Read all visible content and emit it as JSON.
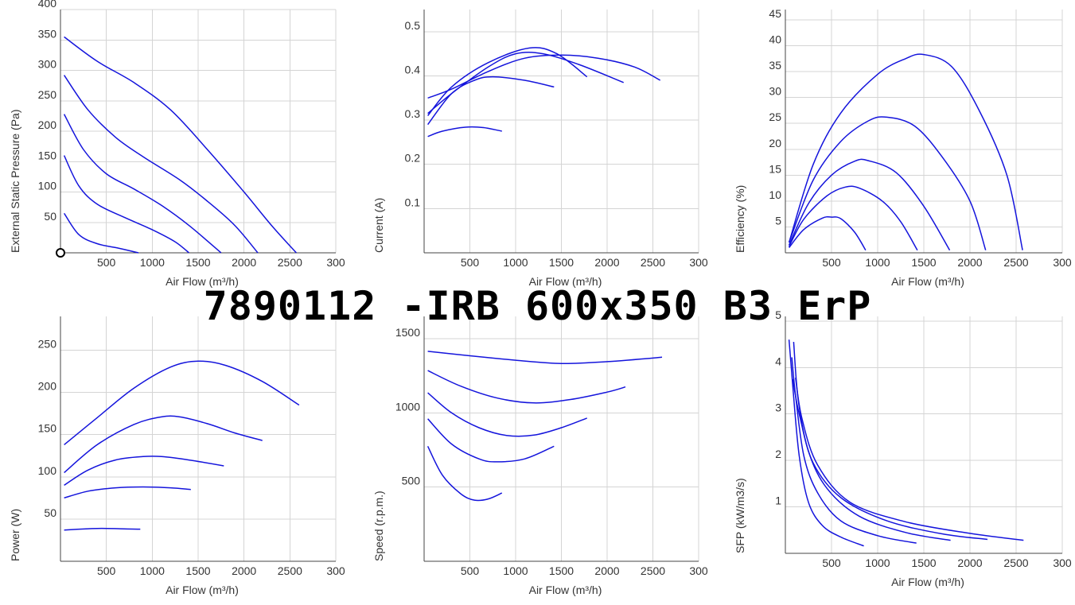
{
  "page": {
    "title": "7890112 -IRB 600x350 B3 ErP"
  },
  "colors": {
    "curve": "#1414dc"
  },
  "chart_data": [
    {
      "type": "line",
      "xlabel": "Air Flow (m³/h)",
      "ylabel": "External Static Pressure (Pa)",
      "xlim": [
        0,
        3000
      ],
      "ylim": [
        0,
        400
      ],
      "x_ticks": [
        "500",
        "1000",
        "1500",
        "2000",
        "2500",
        "300"
      ],
      "y_ticks": [
        "50",
        "100",
        "150",
        "200",
        "250",
        "300",
        "350",
        "400"
      ],
      "marker": {
        "x": 0,
        "y": 0,
        "shape": "circle"
      },
      "series": [
        {
          "points": [
            [
              40,
              355
            ],
            [
              400,
              315
            ],
            [
              800,
              280
            ],
            [
              1200,
              235
            ],
            [
              1600,
              170
            ],
            [
              2000,
              100
            ],
            [
              2300,
              45
            ],
            [
              2570,
              0
            ]
          ]
        },
        {
          "points": [
            [
              40,
              292
            ],
            [
              300,
              235
            ],
            [
              600,
              190
            ],
            [
              900,
              158
            ],
            [
              1300,
              120
            ],
            [
              1600,
              85
            ],
            [
              1900,
              45
            ],
            [
              2150,
              0
            ]
          ]
        },
        {
          "points": [
            [
              40,
              228
            ],
            [
              250,
              170
            ],
            [
              500,
              130
            ],
            [
              800,
              105
            ],
            [
              1100,
              78
            ],
            [
              1400,
              45
            ],
            [
              1750,
              0
            ]
          ]
        },
        {
          "points": [
            [
              40,
              160
            ],
            [
              200,
              110
            ],
            [
              400,
              80
            ],
            [
              700,
              58
            ],
            [
              1000,
              38
            ],
            [
              1250,
              18
            ],
            [
              1400,
              0
            ]
          ]
        },
        {
          "points": [
            [
              40,
              65
            ],
            [
              200,
              30
            ],
            [
              400,
              15
            ],
            [
              650,
              7
            ],
            [
              850,
              0
            ]
          ]
        }
      ]
    },
    {
      "type": "line",
      "xlabel": "Air Flow (m³/h)",
      "ylabel": "Current (A)",
      "xlim": [
        0,
        3000
      ],
      "ylim": [
        0,
        0.55
      ],
      "x_ticks": [
        "500",
        "1000",
        "1500",
        "2000",
        "2500",
        "300"
      ],
      "y_ticks": [
        "0.1",
        "0.2",
        "0.3",
        "0.4",
        "0.5"
      ],
      "series": [
        {
          "points": [
            [
              40,
              0.35
            ],
            [
              300,
              0.37
            ],
            [
              700,
              0.41
            ],
            [
              1100,
              0.44
            ],
            [
              1500,
              0.447
            ],
            [
              1900,
              0.44
            ],
            [
              2300,
              0.42
            ],
            [
              2580,
              0.39
            ]
          ]
        },
        {
          "points": [
            [
              40,
              0.315
            ],
            [
              300,
              0.36
            ],
            [
              700,
              0.42
            ],
            [
              1000,
              0.45
            ],
            [
              1300,
              0.45
            ],
            [
              1700,
              0.425
            ],
            [
              2180,
              0.385
            ]
          ]
        },
        {
          "points": [
            [
              40,
              0.31
            ],
            [
              300,
              0.375
            ],
            [
              700,
              0.43
            ],
            [
              1150,
              0.463
            ],
            [
              1450,
              0.45
            ],
            [
              1780,
              0.398
            ]
          ]
        },
        {
          "points": [
            [
              40,
              0.29
            ],
            [
              300,
              0.36
            ],
            [
              550,
              0.39
            ],
            [
              750,
              0.398
            ],
            [
              1100,
              0.39
            ],
            [
              1420,
              0.375
            ]
          ]
        },
        {
          "points": [
            [
              40,
              0.263
            ],
            [
              200,
              0.275
            ],
            [
              450,
              0.284
            ],
            [
              650,
              0.283
            ],
            [
              850,
              0.275
            ]
          ]
        }
      ]
    },
    {
      "type": "line",
      "xlabel": "Air Flow (m³/h)",
      "ylabel": "Efficiency (%)",
      "xlim": [
        0,
        3000
      ],
      "ylim": [
        0,
        47
      ],
      "x_ticks": [
        "500",
        "1000",
        "1500",
        "2000",
        "2500",
        "300"
      ],
      "y_ticks": [
        "5",
        "10",
        "15",
        "20",
        "25",
        "30",
        "35",
        "40",
        "45"
      ],
      "series": [
        {
          "points": [
            [
              40,
              2
            ],
            [
              300,
              17
            ],
            [
              600,
              27
            ],
            [
              1000,
              34.5
            ],
            [
              1300,
              37.5
            ],
            [
              1500,
              38.3
            ],
            [
              1800,
              36
            ],
            [
              2100,
              27.5
            ],
            [
              2400,
              15
            ],
            [
              2570,
              0.5
            ]
          ]
        },
        {
          "points": [
            [
              40,
              2
            ],
            [
              300,
              14
            ],
            [
              600,
              21.5
            ],
            [
              900,
              25.5
            ],
            [
              1100,
              26.2
            ],
            [
              1400,
              24.5
            ],
            [
              1700,
              18.5
            ],
            [
              2000,
              10
            ],
            [
              2170,
              0.5
            ]
          ]
        },
        {
          "points": [
            [
              40,
              1.5
            ],
            [
              250,
              9.5
            ],
            [
              500,
              15
            ],
            [
              750,
              17.7
            ],
            [
              900,
              17.8
            ],
            [
              1200,
              15.5
            ],
            [
              1500,
              9
            ],
            [
              1780,
              0.5
            ]
          ]
        },
        {
          "points": [
            [
              40,
              1.2
            ],
            [
              200,
              6.5
            ],
            [
              450,
              11
            ],
            [
              650,
              12.7
            ],
            [
              800,
              12.5
            ],
            [
              1050,
              10
            ],
            [
              1250,
              6
            ],
            [
              1430,
              0.5
            ]
          ]
        },
        {
          "points": [
            [
              40,
              1
            ],
            [
              200,
              4.5
            ],
            [
              400,
              6.7
            ],
            [
              500,
              6.9
            ],
            [
              600,
              6.6
            ],
            [
              750,
              4
            ],
            [
              870,
              0.5
            ]
          ]
        }
      ]
    },
    {
      "type": "line",
      "xlabel": "Air Flow (m³/h)",
      "ylabel": "Power (W)",
      "xlim": [
        0,
        3000
      ],
      "ylim": [
        0,
        290
      ],
      "x_ticks": [
        "500",
        "1000",
        "1500",
        "2000",
        "2500",
        "300"
      ],
      "y_ticks": [
        "50",
        "100",
        "150",
        "200",
        "250"
      ],
      "series": [
        {
          "points": [
            [
              40,
              138
            ],
            [
              400,
              170
            ],
            [
              800,
              205
            ],
            [
              1200,
              230
            ],
            [
              1500,
              237
            ],
            [
              1800,
              232
            ],
            [
              2200,
              213
            ],
            [
              2600,
              185
            ]
          ]
        },
        {
          "points": [
            [
              40,
              105
            ],
            [
              400,
              138
            ],
            [
              800,
              162
            ],
            [
              1100,
              171
            ],
            [
              1300,
              171
            ],
            [
              1600,
              163
            ],
            [
              1900,
              152
            ],
            [
              2200,
              143
            ]
          ]
        },
        {
          "points": [
            [
              40,
              90
            ],
            [
              300,
              108
            ],
            [
              600,
              120
            ],
            [
              900,
              124
            ],
            [
              1100,
              124
            ],
            [
              1400,
              120
            ],
            [
              1780,
              113
            ]
          ]
        },
        {
          "points": [
            [
              40,
              75
            ],
            [
              300,
              83
            ],
            [
              600,
              87
            ],
            [
              900,
              88
            ],
            [
              1200,
              87
            ],
            [
              1420,
              85
            ]
          ]
        },
        {
          "points": [
            [
              40,
              37
            ],
            [
              300,
              38.5
            ],
            [
              450,
              39
            ],
            [
              650,
              38.5
            ],
            [
              870,
              38
            ]
          ]
        }
      ]
    },
    {
      "type": "line",
      "xlabel": "Air Flow (m³/h)",
      "ylabel": "Speed (r.p.m.)",
      "xlim": [
        0,
        3000
      ],
      "ylim": [
        0,
        1650
      ],
      "x_ticks": [
        "500",
        "1000",
        "1500",
        "2000",
        "2500",
        "300"
      ],
      "y_ticks": [
        "500",
        "1000",
        "1500"
      ],
      "series": [
        {
          "points": [
            [
              40,
              1415
            ],
            [
              500,
              1385
            ],
            [
              1000,
              1355
            ],
            [
              1500,
              1333
            ],
            [
              2000,
              1345
            ],
            [
              2600,
              1375
            ]
          ]
        },
        {
          "points": [
            [
              40,
              1285
            ],
            [
              400,
              1180
            ],
            [
              800,
              1100
            ],
            [
              1200,
              1067
            ],
            [
              1600,
              1090
            ],
            [
              2000,
              1140
            ],
            [
              2200,
              1175
            ]
          ]
        },
        {
          "points": [
            [
              40,
              1135
            ],
            [
              300,
              1000
            ],
            [
              600,
              900
            ],
            [
              900,
              848
            ],
            [
              1200,
              850
            ],
            [
              1500,
              900
            ],
            [
              1780,
              965
            ]
          ]
        },
        {
          "points": [
            [
              40,
              960
            ],
            [
              300,
              790
            ],
            [
              600,
              690
            ],
            [
              800,
              670
            ],
            [
              1100,
              690
            ],
            [
              1420,
              775
            ]
          ]
        },
        {
          "points": [
            [
              40,
              775
            ],
            [
              200,
              580
            ],
            [
              400,
              455
            ],
            [
              550,
              412
            ],
            [
              700,
              420
            ],
            [
              850,
              460
            ]
          ]
        }
      ]
    },
    {
      "type": "line",
      "xlabel": "Air Flow (m³/h)",
      "ylabel": "SFP (kW/m3/s)",
      "xlim": [
        0,
        3000
      ],
      "ylim": [
        0,
        5.1
      ],
      "x_ticks": [
        "500",
        "1000",
        "1500",
        "2000",
        "2500",
        "300"
      ],
      "y_ticks": [
        "1",
        "2",
        "3",
        "4",
        "5"
      ],
      "series": [
        {
          "points": [
            [
              40,
              4.6
            ],
            [
              80,
              3.6
            ],
            [
              150,
              2.1
            ],
            [
              250,
              1.1
            ],
            [
              400,
              0.6
            ],
            [
              600,
              0.35
            ],
            [
              850,
              0.16
            ]
          ]
        },
        {
          "points": [
            [
              70,
              4.22
            ],
            [
              110,
              3.4
            ],
            [
              200,
              2.1
            ],
            [
              350,
              1.3
            ],
            [
              600,
              0.7
            ],
            [
              1000,
              0.38
            ],
            [
              1420,
              0.22
            ]
          ]
        },
        {
          "points": [
            [
              90,
              4.55
            ],
            [
              140,
              3.3
            ],
            [
              250,
              2.2
            ],
            [
              450,
              1.4
            ],
            [
              800,
              0.8
            ],
            [
              1300,
              0.45
            ],
            [
              1790,
              0.28
            ]
          ]
        },
        {
          "points": [
            [
              80,
              3.75
            ],
            [
              150,
              3.0
            ],
            [
              300,
              1.95
            ],
            [
              600,
              1.2
            ],
            [
              1100,
              0.7
            ],
            [
              1700,
              0.42
            ],
            [
              2190,
              0.3
            ]
          ]
        },
        {
          "points": [
            [
              110,
              3.78
            ],
            [
              180,
              2.9
            ],
            [
              350,
              1.9
            ],
            [
              700,
              1.1
            ],
            [
              1300,
              0.68
            ],
            [
              2000,
              0.43
            ],
            [
              2580,
              0.28
            ]
          ]
        }
      ]
    }
  ]
}
